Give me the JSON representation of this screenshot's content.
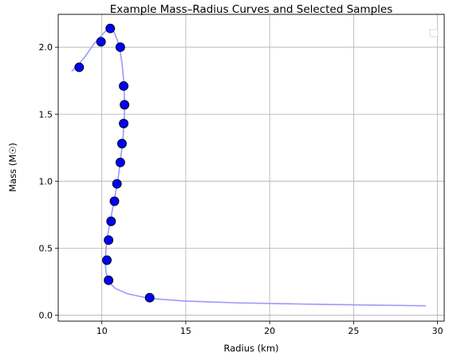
{
  "chart_data": {
    "type": "scatter",
    "title": "Example Mass–Radius Curves and Selected Samples",
    "xlabel": "Radius (km)",
    "ylabel": "Mass (M☉)",
    "xlim": [
      7.4,
      30.4
    ],
    "ylim": [
      -0.045,
      2.245
    ],
    "xticks": [
      {
        "value": 10,
        "label": "10"
      },
      {
        "value": 15,
        "label": "15"
      },
      {
        "value": 20,
        "label": "20"
      },
      {
        "value": 25,
        "label": "25"
      },
      {
        "value": 30,
        "label": "30"
      }
    ],
    "yticks": [
      {
        "value": 0.0,
        "label": "0.0"
      },
      {
        "value": 0.5,
        "label": "0.5"
      },
      {
        "value": 1.0,
        "label": "1.0"
      },
      {
        "value": 1.5,
        "label": "1.5"
      },
      {
        "value": 2.0,
        "label": "2.0"
      }
    ],
    "grid": true,
    "legend": {
      "placement": "top-right",
      "entries": []
    },
    "colors": {
      "curve": "#9999ff",
      "marker": "#0000ff",
      "marker_edge": "#000000",
      "grid": "#b0b0b0"
    },
    "series": [
      {
        "kind": "line",
        "x": [
          8.2,
          8.6,
          9.0,
          9.5,
          10.0,
          10.3,
          10.5,
          10.7,
          10.9,
          11.05,
          11.2,
          11.3,
          11.35,
          11.35,
          11.3,
          11.25,
          11.15,
          11.05,
          10.95,
          10.8,
          10.65,
          10.5,
          10.35,
          10.25,
          10.2,
          10.25,
          10.4,
          10.8,
          11.5,
          12.8,
          15.0,
          18.0,
          22.0,
          26.0,
          29.3
        ],
        "y": [
          1.82,
          1.87,
          1.93,
          2.02,
          2.09,
          2.13,
          2.14,
          2.12,
          2.06,
          2.0,
          1.88,
          1.75,
          1.6,
          1.5,
          1.4,
          1.3,
          1.2,
          1.1,
          1.0,
          0.9,
          0.8,
          0.7,
          0.6,
          0.5,
          0.4,
          0.32,
          0.25,
          0.2,
          0.16,
          0.125,
          0.105,
          0.092,
          0.082,
          0.075,
          0.07
        ]
      },
      {
        "kind": "scatter",
        "x": [
          8.65,
          9.95,
          10.5,
          11.1,
          11.3,
          11.35,
          11.3,
          11.2,
          11.1,
          10.9,
          10.75,
          10.55,
          10.4,
          10.3,
          10.4,
          12.85
        ],
        "y": [
          1.85,
          2.04,
          2.14,
          2.0,
          1.71,
          1.57,
          1.43,
          1.28,
          1.14,
          0.98,
          0.85,
          0.7,
          0.56,
          0.41,
          0.26,
          0.13
        ]
      }
    ]
  }
}
